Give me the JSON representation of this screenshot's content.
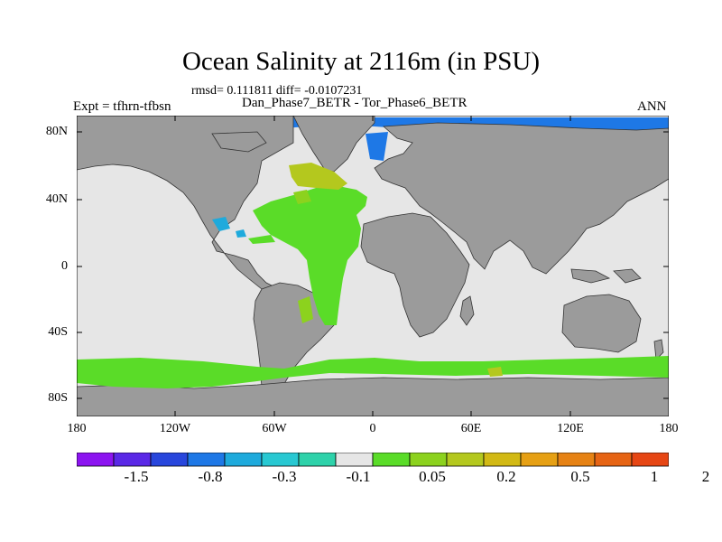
{
  "title": "Ocean Salinity at 2116m (in PSU)",
  "stats_line": "rmsd= 0.111811 diff= -0.0107231",
  "experiment": "Expt = tfhrn-tfbsn",
  "cases": "Dan_Phase7_BETR - Tor_Phase6_BETR",
  "season": "ANN",
  "y_ticks": [
    "80N",
    "40N",
    "0",
    "40S",
    "80S"
  ],
  "x_ticks": [
    "180",
    "120W",
    "60W",
    "0",
    "60E",
    "120E",
    "180"
  ],
  "colorbar": {
    "labels": [
      "-1.5",
      "-0.8",
      "-0.3",
      "-0.1",
      "0.05",
      "0.2",
      "0.5",
      "1",
      "2"
    ],
    "colors": [
      "#8c14f0",
      "#5a28e6",
      "#2846dc",
      "#1e78e6",
      "#1eaadc",
      "#28c8d2",
      "#2ed2aa",
      "#e6e6e6",
      "#5adc28",
      "#8cd21e",
      "#b4c81e",
      "#d2b914",
      "#e6a014",
      "#e68214",
      "#e66414",
      "#e64614"
    ]
  },
  "legend_colors": {
    "land": "#9b9b9b",
    "near_zero": "#e6e6e6",
    "green": "#5adc28",
    "yellow_green": "#b4c81e",
    "blue": "#1e78e6",
    "cyan": "#1eaadc"
  }
}
